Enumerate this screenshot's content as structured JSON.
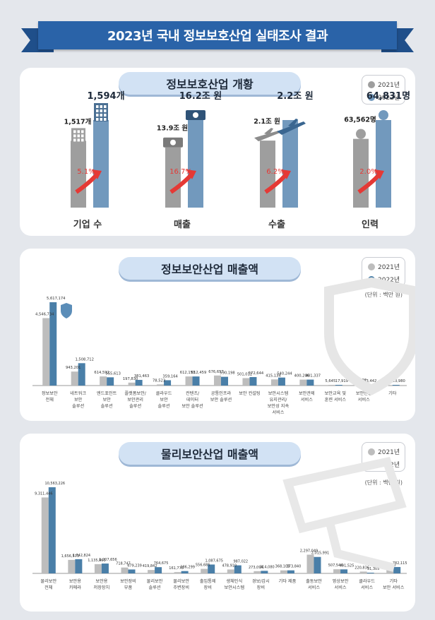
{
  "title": "2023년 국내 정보보호산업 실태조사 결과",
  "legend": {
    "y2021": "2021년",
    "y2022": "2022년"
  },
  "colors": {
    "y2021": "#bdbdbd",
    "y2022": "#4a7fa8",
    "y2021_overview": "#9e9e9e",
    "y2022_overview": "#7299bd",
    "arrow": "#e53935",
    "pct": "#e53935",
    "navy": "#1e2a3a"
  },
  "overview": {
    "title": "정보보호산업 개황",
    "items": [
      {
        "label": "기업 수",
        "v2021": "1,517개",
        "v2022": "1,594개",
        "growth": "5.1%",
        "icon": "building-icon",
        "ratio": 0.952
      },
      {
        "label": "매출",
        "v2021": "13.9조 원",
        "v2022": "16.2조 원",
        "growth": "16.7%",
        "icon": "banknote-icon",
        "ratio": 0.858
      },
      {
        "label": "수출",
        "v2021": "2.1조 원",
        "v2022": "2.2조 원",
        "growth": "6.2%",
        "icon": "airplane-icon",
        "ratio": 0.955
      },
      {
        "label": "인력",
        "v2021": "63,562명",
        "v2022": "64,831명",
        "growth": "2.0%",
        "icon": "person-icon",
        "ratio": 0.98
      }
    ]
  },
  "security_sales": {
    "title": "정보보안산업 매출액",
    "unit": "(단위 : 백만 원)",
    "chart_data": {
      "type": "bar",
      "title": "정보보안산업 매출액",
      "unit": "(단위 : 백만 원)",
      "categories": [
        "정보보안\n전체",
        "네트워크\n보안\n솔루션",
        "엔드포인트\n보안\n솔루션",
        "플랫폼보안/\n보안관리\n솔루션",
        "클라우드\n보안\n솔루션",
        "컨텐츠/\n데이터\n보안 솔루션",
        "공통인프라\n보안 솔루션",
        "보안 컨설팅",
        "보안시스템\n유지관리/\n보안성 지속\n서비스",
        "보안관제\n서비스",
        "보안교육 및\n훈련 서비스",
        "보안인증\n서비스",
        "기타"
      ],
      "series": [
        {
          "name": "2021년",
          "values": [
            4546734,
            943201,
            614592,
            197830,
            78523,
            612153,
            676657,
            501012,
            415134,
            400206,
            5645,
            103682,
            0
          ],
          "labels": [
            "4,546,734",
            "943,201",
            "614,592",
            "197,830",
            "78,523",
            "612,153",
            "676,657",
            "501,012",
            "415,134",
            "400,206",
            "5,645",
            "103,682",
            "-"
          ]
        },
        {
          "name": "2022년",
          "values": [
            5617174,
            1508712,
            555613,
            381463,
            359164,
            612459,
            590198,
            572644,
            540244,
            401337,
            17919,
            53442,
            23980
          ],
          "labels": [
            "5,617,174",
            "1,508,712",
            "555,613",
            "381,463",
            "359,164",
            "612,459",
            "590,198",
            "572,644",
            "540,244",
            "401,337",
            "17,919",
            "53,442",
            "23,980"
          ]
        }
      ]
    }
  },
  "physical_sales": {
    "title": "물리보안산업 매출액",
    "unit": "(단위 : 백만 원)",
    "chart_data": {
      "type": "bar",
      "title": "물리보안산업 매출액",
      "unit": "(단위 : 백만 원)",
      "categories": [
        "물리보안\n전체",
        "보안용\n카메라",
        "보안용\n저장장치",
        "보안장비\n부품",
        "물리보안\n솔루션",
        "물리보안\n주변장비",
        "출입통제\n장비",
        "생체인식\n보안시스템",
        "경보/감시\n장비",
        "기타 제품",
        "출동보안\n서비스",
        "영상보안\n서비스",
        "클라우드\n서비스",
        "기타\n보안 서비스"
      ],
      "series": [
        {
          "name": "2021년",
          "values": [
            9311446,
            1656579,
            1135863,
            718747,
            419842,
            161775,
            556685,
            478910,
            273094,
            368103,
            2297049,
            507544,
            220836,
            516400
          ],
          "labels": [
            "9,311,446",
            "1,656,579",
            "1,135,863",
            "718,747",
            "419,842",
            "161,775",
            "556,685",
            "478,910",
            "273,094",
            "368,103",
            "2,297,049",
            "507,544",
            "220,836",
            "516,400"
          ]
        },
        {
          "name": "2022년",
          "values": [
            10563226,
            1742824,
            1207656,
            479239,
            764675,
            286299,
            1087675,
            987022,
            314080,
            373840,
            2015991,
            491525,
            31305,
            782115
          ],
          "labels": [
            "10,563,226",
            "1,742,824",
            "1,207,656",
            "479,239",
            "764,675",
            "286,299",
            "1,087,675",
            "987,022",
            "314,080",
            "373,840",
            "2,015,991",
            "491,525",
            "31,305",
            "782,115"
          ]
        }
      ]
    }
  }
}
